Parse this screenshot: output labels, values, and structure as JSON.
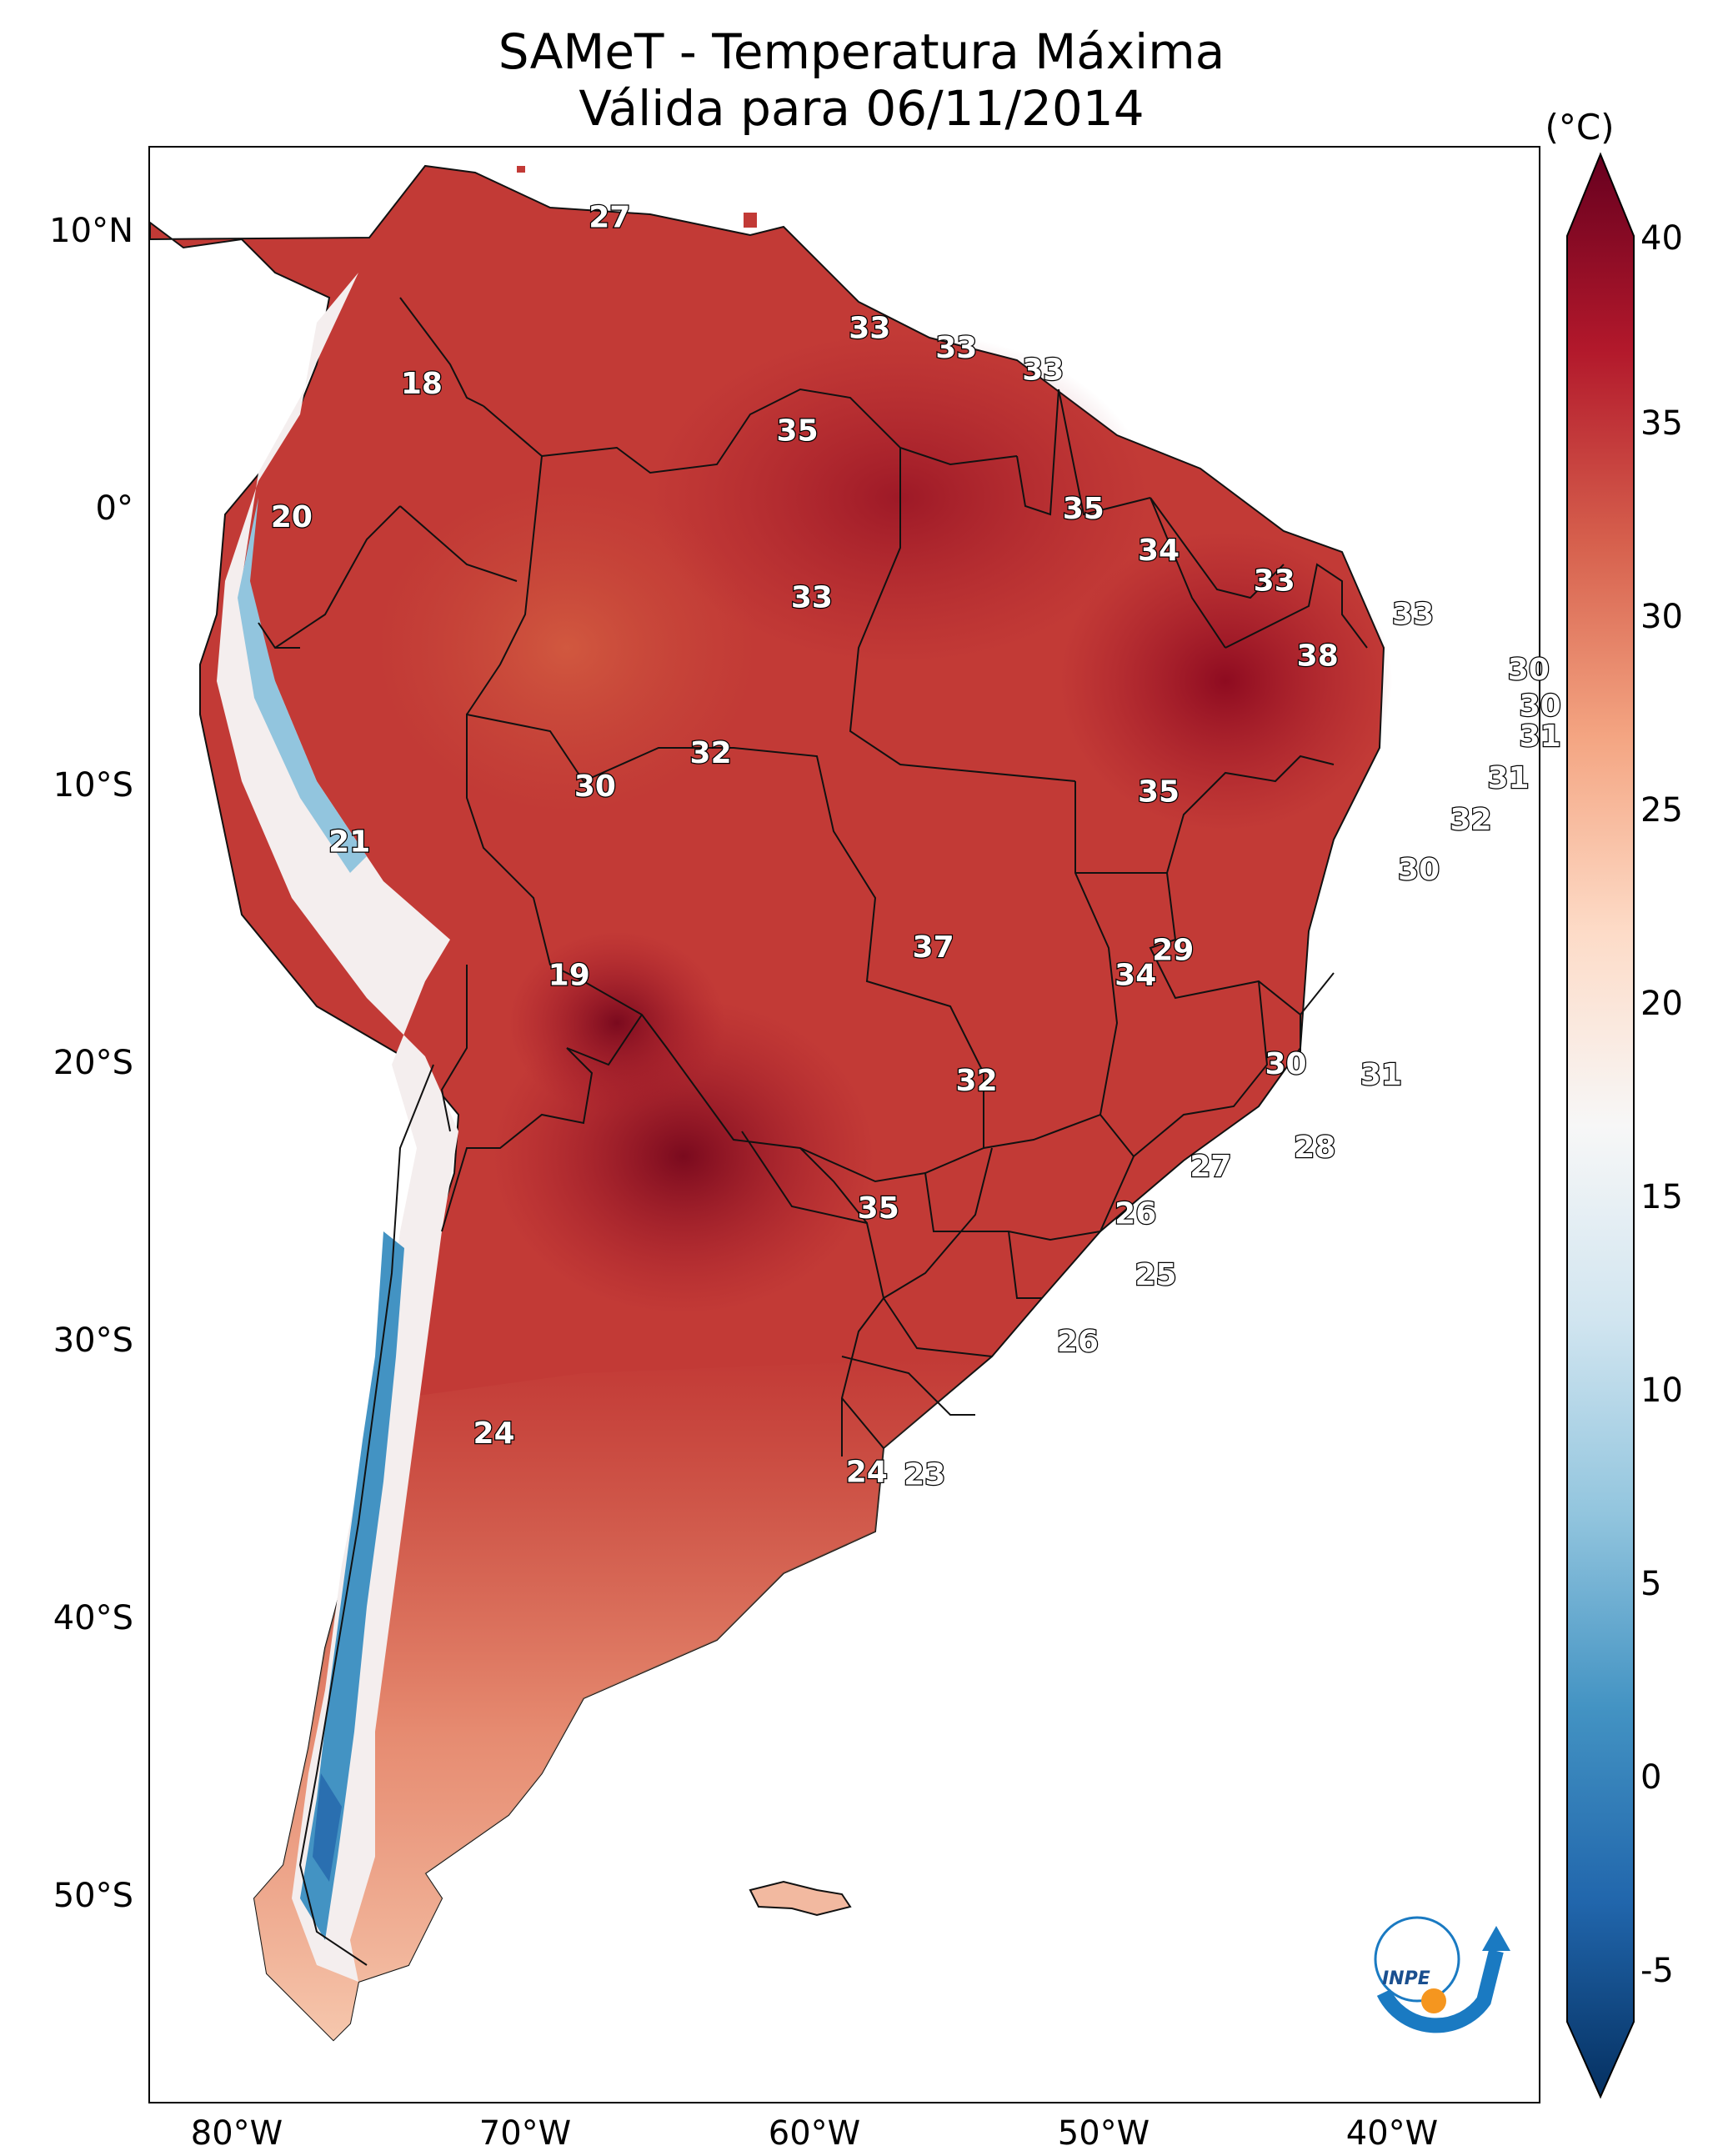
{
  "title_line1": "SAMeT - Temperatura Máxima",
  "title_line2": "Válida para 06/11/2014",
  "colorbar": {
    "unit": "(°C)",
    "ticks": [
      "40",
      "35",
      "30",
      "25",
      "20",
      "15",
      "10",
      "5",
      "0",
      "-5"
    ],
    "range": [
      -5,
      40
    ],
    "colors": [
      "#053061",
      "#2166ac",
      "#4393c3",
      "#92c5de",
      "#d1e5f0",
      "#f7f7f7",
      "#fddbc7",
      "#f4a582",
      "#d6604d",
      "#b2182b",
      "#67001f"
    ]
  },
  "axes": {
    "lat_labels": [
      "10°N",
      "0°",
      "10°S",
      "20°S",
      "30°S",
      "40°S",
      "50°S"
    ],
    "lon_labels": [
      "80°W",
      "70°W",
      "60°W",
      "50°W",
      "40°W"
    ]
  },
  "map_points": [
    {
      "label": "27",
      "lon": -67,
      "lat": 10.5
    },
    {
      "label": "18",
      "lon": -73.5,
      "lat": 4.5
    },
    {
      "label": "33",
      "lon": -58,
      "lat": 6.5
    },
    {
      "label": "33",
      "lon": -55,
      "lat": 5.8
    },
    {
      "label": "33",
      "lon": -52,
      "lat": 5
    },
    {
      "label": "35",
      "lon": -60.5,
      "lat": 2.8
    },
    {
      "label": "20",
      "lon": -78,
      "lat": -0.3
    },
    {
      "label": "35",
      "lon": -50.6,
      "lat": 0
    },
    {
      "label": "34",
      "lon": -48,
      "lat": -1.5
    },
    {
      "label": "33",
      "lon": -44,
      "lat": -2.6
    },
    {
      "label": "33",
      "lon": -60,
      "lat": -3.2
    },
    {
      "label": "33",
      "lon": -39.2,
      "lat": -3.8
    },
    {
      "label": "38",
      "lon": -42.5,
      "lat": -5.3
    },
    {
      "label": "30",
      "lon": -35.2,
      "lat": -5.8
    },
    {
      "label": "30",
      "lon": -34.8,
      "lat": -7.1
    },
    {
      "label": "31",
      "lon": -34.8,
      "lat": -8.2
    },
    {
      "label": "32",
      "lon": -63.5,
      "lat": -8.8
    },
    {
      "label": "30",
      "lon": -67.5,
      "lat": -10
    },
    {
      "label": "35",
      "lon": -48,
      "lat": -10.2
    },
    {
      "label": "31",
      "lon": -35.9,
      "lat": -9.7
    },
    {
      "label": "32",
      "lon": -37.2,
      "lat": -11.2
    },
    {
      "label": "21",
      "lon": -76,
      "lat": -12
    },
    {
      "label": "30",
      "lon": -39,
      "lat": -13
    },
    {
      "label": "37",
      "lon": -55.8,
      "lat": -15.8
    },
    {
      "label": "29",
      "lon": -47.5,
      "lat": -15.9
    },
    {
      "label": "34",
      "lon": -48.8,
      "lat": -16.8
    },
    {
      "label": "19",
      "lon": -68.4,
      "lat": -16.8
    },
    {
      "label": "30",
      "lon": -43.6,
      "lat": -20
    },
    {
      "label": "31",
      "lon": -40.3,
      "lat": -20.4
    },
    {
      "label": "32",
      "lon": -54.3,
      "lat": -20.6
    },
    {
      "label": "28",
      "lon": -42.6,
      "lat": -23
    },
    {
      "label": "27",
      "lon": -46.2,
      "lat": -23.7
    },
    {
      "label": "35",
      "lon": -57.7,
      "lat": -25.2
    },
    {
      "label": "26",
      "lon": -48.8,
      "lat": -25.4
    },
    {
      "label": "25",
      "lon": -48.1,
      "lat": -27.6
    },
    {
      "label": "26",
      "lon": -50.8,
      "lat": -30
    },
    {
      "label": "24",
      "lon": -71,
      "lat": -33.3
    },
    {
      "label": "24",
      "lon": -58.1,
      "lat": -34.7
    },
    {
      "label": "23",
      "lon": -56.1,
      "lat": -34.8
    }
  ],
  "logo_text": "INPE"
}
